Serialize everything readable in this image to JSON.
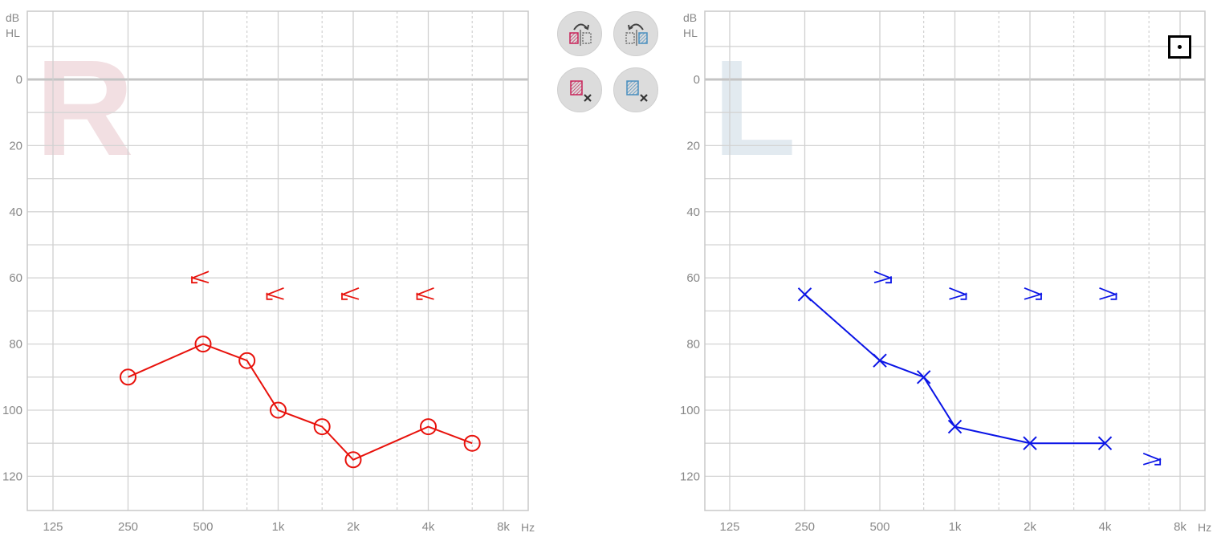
{
  "chart_data": [
    {
      "type": "line",
      "ear": "right",
      "ear_watermark": "R",
      "ylabel": [
        "dB",
        "HL"
      ],
      "xunit": "Hz",
      "x_ticks": [
        "125",
        "250",
        "500",
        "1k",
        "2k",
        "4k",
        "8k"
      ],
      "x_ticks_hz": [
        125,
        250,
        500,
        1000,
        2000,
        4000,
        8000
      ],
      "y_ticks": [
        0,
        20,
        40,
        60,
        80,
        100,
        120
      ],
      "ylim": [
        -20,
        130
      ],
      "y_inverted": true,
      "x_scale": "log",
      "grid": true,
      "color": "#e8120c",
      "series": [
        {
          "symbol": "circle",
          "connected": true,
          "points": [
            {
              "hz": 250,
              "db": 90
            },
            {
              "hz": 500,
              "db": 80
            },
            {
              "hz": 750,
              "db": 85
            },
            {
              "hz": 1000,
              "db": 100
            },
            {
              "hz": 1500,
              "db": 105
            },
            {
              "hz": 2000,
              "db": 115
            },
            {
              "hz": 4000,
              "db": 105
            },
            {
              "hz": 6000,
              "db": 110
            }
          ]
        },
        {
          "symbol": "bone-left-bracket",
          "connected": false,
          "points": [
            {
              "hz": 500,
              "db": 60
            },
            {
              "hz": 1000,
              "db": 65
            },
            {
              "hz": 2000,
              "db": 65
            },
            {
              "hz": 4000,
              "db": 65
            }
          ]
        }
      ]
    },
    {
      "type": "line",
      "ear": "left",
      "ear_watermark": "L",
      "ylabel": [
        "dB",
        "HL"
      ],
      "xunit": "Hz",
      "x_ticks": [
        "125",
        "250",
        "500",
        "1k",
        "2k",
        "4k",
        "8k"
      ],
      "x_ticks_hz": [
        125,
        250,
        500,
        1000,
        2000,
        4000,
        8000
      ],
      "y_ticks": [
        0,
        20,
        40,
        60,
        80,
        100,
        120
      ],
      "ylim": [
        -20,
        130
      ],
      "y_inverted": true,
      "x_scale": "log",
      "grid": true,
      "color": "#0a14e6",
      "series": [
        {
          "symbol": "cross",
          "connected": true,
          "points": [
            {
              "hz": 250,
              "db": 65
            },
            {
              "hz": 500,
              "db": 85
            },
            {
              "hz": 750,
              "db": 90
            },
            {
              "hz": 1000,
              "db": 105
            },
            {
              "hz": 2000,
              "db": 110
            },
            {
              "hz": 4000,
              "db": 110
            }
          ]
        },
        {
          "symbol": "bone-right-bracket",
          "connected": false,
          "points": [
            {
              "hz": 500,
              "db": 60
            },
            {
              "hz": 1000,
              "db": 65
            },
            {
              "hz": 2000,
              "db": 65
            },
            {
              "hz": 4000,
              "db": 65
            },
            {
              "hz": 6000,
              "db": 115
            }
          ]
        }
      ]
    }
  ],
  "toolbar": {
    "buttons": [
      {
        "id": "btn-copy-r",
        "icon": "copy-right-to-left-icon"
      },
      {
        "id": "btn-copy-l",
        "icon": "copy-left-to-right-icon"
      },
      {
        "id": "btn-clear-r",
        "icon": "clear-right-icon"
      },
      {
        "id": "btn-clear-l",
        "icon": "clear-left-icon"
      }
    ],
    "right_color": "#c8245a",
    "left_color": "#4a8fbf"
  },
  "masking_toggle_icon": "masking-toggle-icon"
}
